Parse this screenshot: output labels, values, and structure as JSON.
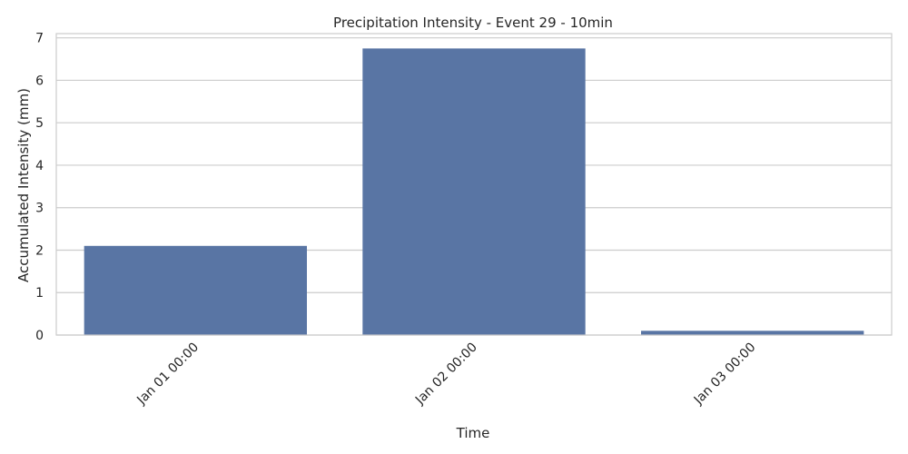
{
  "chart_data": {
    "type": "bar",
    "title": "Precipitation Intensity - Event 29 - 10min",
    "xlabel": "Time",
    "ylabel": "Accumulated Intensity (mm)",
    "categories": [
      "Jan 01 00:00",
      "Jan 02 00:00",
      "Jan 03 00:00"
    ],
    "values": [
      2.1,
      6.75,
      0.1
    ],
    "ylim": [
      0,
      7.1
    ],
    "yticks": [
      0,
      1,
      2,
      3,
      4,
      5,
      6,
      7
    ],
    "grid": true,
    "bar_color": "#5975a4",
    "grid_color": "#cccccc",
    "spine_color": "#cccccc"
  }
}
